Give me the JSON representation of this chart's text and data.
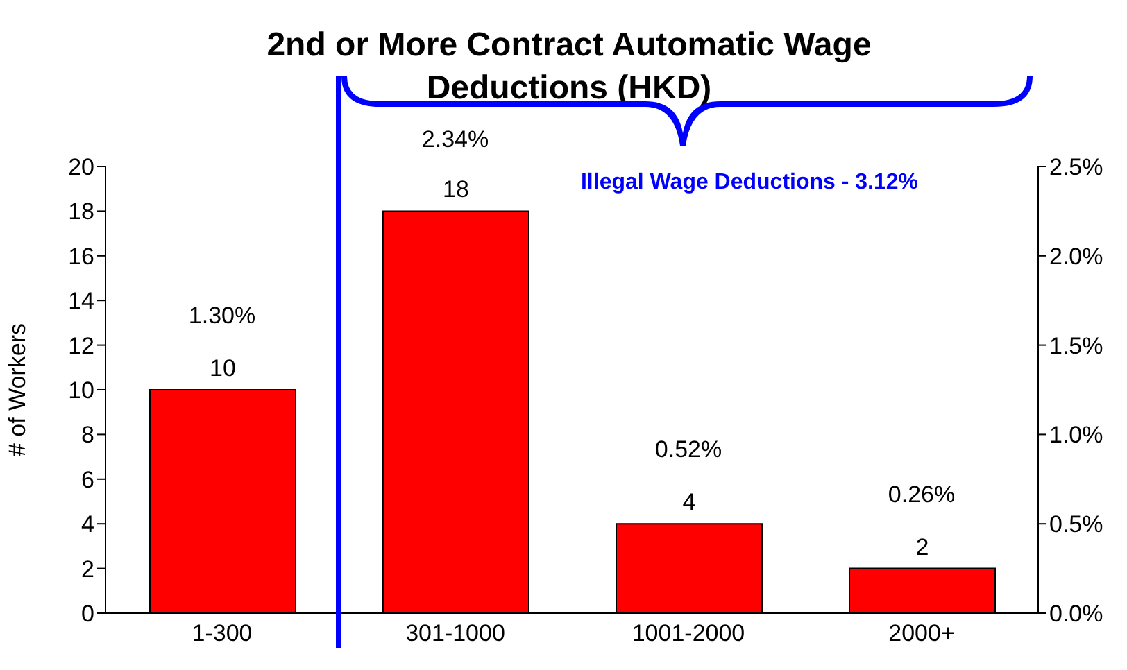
{
  "chart_data": {
    "type": "bar",
    "title": "2nd or More Contract Automatic Wage Deductions (HKD)",
    "ylabel": "# of Workers",
    "categories": [
      "1-300",
      "301-1000",
      "1001-2000",
      "2000+"
    ],
    "values": [
      10,
      18,
      4,
      2
    ],
    "color": "#ff0000",
    "data_labels": true,
    "ylim": [
      0,
      20
    ],
    "yticks": [
      0,
      2,
      4,
      6,
      8,
      10,
      12,
      14,
      16,
      18,
      20
    ],
    "y2lim": [
      0,
      2.5
    ],
    "y2ticks": [
      {
        "value": 0,
        "label": "0.0%"
      },
      {
        "value": 0.5,
        "label": "0.5%"
      },
      {
        "value": 1,
        "label": "1.0%"
      },
      {
        "value": 1.5,
        "label": "1.5%"
      },
      {
        "value": 2,
        "label": "2.0%"
      },
      {
        "value": 2.5,
        "label": "2.5%"
      }
    ],
    "annotations": [
      "1.30%",
      "2.34%",
      "0.52%",
      "0.26%"
    ],
    "ref_lines": [
      {
        "axis": "x",
        "value": "301-1000",
        "label": "Illegal Wage Deductions - 3.12%",
        "color": "#0000ff"
      }
    ],
    "grid": false
  }
}
